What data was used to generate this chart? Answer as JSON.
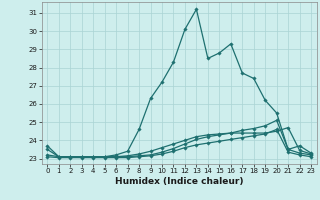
{
  "title": "",
  "xlabel": "Humidex (Indice chaleur)",
  "xlim": [
    -0.5,
    23.5
  ],
  "ylim": [
    22.7,
    31.6
  ],
  "yticks": [
    23,
    24,
    25,
    26,
    27,
    28,
    29,
    30,
    31
  ],
  "xticks": [
    0,
    1,
    2,
    3,
    4,
    5,
    6,
    7,
    8,
    9,
    10,
    11,
    12,
    13,
    14,
    15,
    16,
    17,
    18,
    19,
    20,
    21,
    22,
    23
  ],
  "background_color": "#ceeeed",
  "grid_color": "#aad4d4",
  "line_color": "#1e7070",
  "line1": [
    23.7,
    23.1,
    23.1,
    23.1,
    23.1,
    23.1,
    23.2,
    23.4,
    24.6,
    26.3,
    27.2,
    28.3,
    30.1,
    31.2,
    28.5,
    28.8,
    29.3,
    27.7,
    27.4,
    26.2,
    25.5,
    23.5,
    23.7,
    23.3
  ],
  "line2": [
    23.2,
    23.1,
    23.1,
    23.1,
    23.1,
    23.1,
    23.1,
    23.1,
    23.15,
    23.2,
    23.35,
    23.55,
    23.8,
    24.05,
    24.2,
    24.3,
    24.4,
    24.55,
    24.65,
    24.8,
    25.1,
    23.5,
    23.3,
    23.2
  ],
  "line3": [
    23.1,
    23.05,
    23.05,
    23.05,
    23.05,
    23.05,
    23.05,
    23.05,
    23.1,
    23.15,
    23.25,
    23.4,
    23.6,
    23.75,
    23.85,
    23.95,
    24.05,
    24.15,
    24.25,
    24.35,
    24.6,
    23.35,
    23.2,
    23.1
  ],
  "line4": [
    23.5,
    23.1,
    23.1,
    23.1,
    23.1,
    23.1,
    23.1,
    23.15,
    23.25,
    23.4,
    23.6,
    23.8,
    24.0,
    24.2,
    24.3,
    24.35,
    24.4,
    24.4,
    24.4,
    24.4,
    24.5,
    24.7,
    23.45,
    23.25
  ]
}
